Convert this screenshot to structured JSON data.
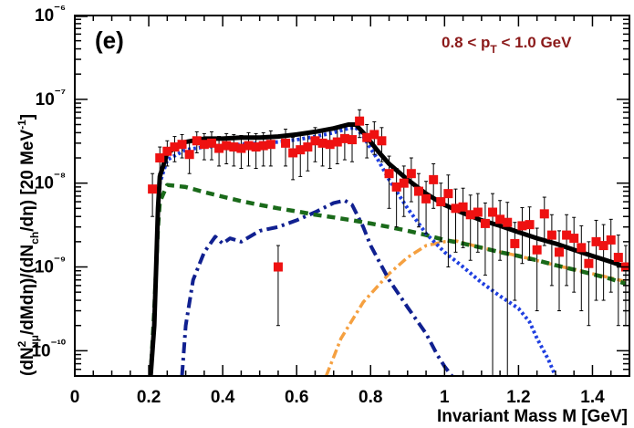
{
  "chart_data": {
    "type": "line",
    "panel_label": "(e)",
    "cut_label": "0.8 <  p_T < 1.0 GeV",
    "xlabel": "Invariant Mass M [GeV]",
    "ylabel": "(dN²_μμ/dMdη)/(dN_ch/dη) [20 MeV⁻¹]",
    "xlim": [
      0,
      1.5
    ],
    "ylim": [
      5e-11,
      1e-06
    ],
    "ylog": true,
    "grid": false,
    "x_ticks": [
      "0",
      "0.2",
      "0.4",
      "0.6",
      "0.8",
      "1",
      "1.2",
      "1.4"
    ],
    "y_ticks": [
      "10⁻¹⁰",
      "10⁻⁹",
      "10⁻⁸",
      "10⁻⁷",
      "10⁻⁶"
    ],
    "colors": {
      "total": "#000000",
      "blue_dotted": "#1f3fe0",
      "green_dashed": "#1a6a1a",
      "navy_dashdot": "#102090",
      "orange_dashdot": "#f5a040",
      "data_points": "#ee1111",
      "cut_label": "#8b1a1a"
    },
    "series": [
      {
        "style": "total",
        "x": [
          0.205,
          0.215,
          0.22,
          0.225,
          0.23,
          0.25,
          0.3,
          0.35,
          0.4,
          0.45,
          0.5,
          0.55,
          0.6,
          0.65,
          0.7,
          0.74,
          0.76,
          0.78,
          0.8,
          0.82,
          0.85,
          0.9,
          0.95,
          1.0,
          1.05,
          1.1,
          1.15,
          1.2,
          1.25,
          1.3,
          1.35,
          1.4,
          1.45,
          1.49
        ],
        "y": [
          5e-11,
          2e-10,
          1e-09,
          5e-09,
          1.2e-08,
          2.3e-08,
          3.1e-08,
          3.4e-08,
          3.4e-08,
          3.5e-08,
          3.5e-08,
          3.6e-08,
          3.8e-08,
          4.1e-08,
          4.5e-08,
          5e-08,
          5e-08,
          4e-08,
          3.1e-08,
          2.4e-08,
          1.7e-08,
          1.1e-08,
          7.5e-09,
          5.5e-09,
          4.4e-09,
          3.6e-09,
          3.1e-09,
          2.6e-09,
          2.2e-09,
          1.9e-09,
          1.6e-09,
          1.35e-09,
          1.15e-09,
          1e-09
        ]
      },
      {
        "style": "blue_dotted",
        "x": [
          0.205,
          0.215,
          0.22,
          0.225,
          0.23,
          0.25,
          0.3,
          0.35,
          0.4,
          0.45,
          0.5,
          0.55,
          0.6,
          0.65,
          0.7,
          0.74,
          0.76,
          0.78,
          0.8,
          0.82,
          0.85,
          0.9,
          0.95,
          1.0,
          1.05,
          1.1,
          1.15,
          1.2,
          1.23,
          1.25,
          1.28,
          1.3
        ],
        "y": [
          5e-11,
          2e-10,
          1e-09,
          5e-09,
          1e-08,
          1.9e-08,
          2.5e-08,
          2.7e-08,
          2.8e-08,
          2.9e-08,
          3e-08,
          3.1e-08,
          3.3e-08,
          3.6e-08,
          4e-08,
          4.5e-08,
          4.6e-08,
          3.6e-08,
          2.6e-08,
          1.9e-08,
          1.1e-08,
          5e-09,
          2.5e-09,
          1.5e-09,
          1e-09,
          6.5e-10,
          4.5e-10,
          3.2e-10,
          2.2e-10,
          1.4e-10,
          8e-11,
          5e-11
        ]
      },
      {
        "style": "green_dashed",
        "x": [
          0.205,
          0.215,
          0.22,
          0.225,
          0.23,
          0.25,
          0.3,
          0.35,
          0.4,
          0.45,
          0.5,
          0.55,
          0.6,
          0.65,
          0.7,
          0.75,
          0.8,
          0.85,
          0.9,
          0.95,
          1.0,
          1.05,
          1.1,
          1.15,
          1.2,
          1.25,
          1.3,
          1.35,
          1.4,
          1.45,
          1.49
        ],
        "y": [
          5e-11,
          3e-10,
          1e-09,
          3e-09,
          6e-09,
          9.5e-09,
          9e-09,
          7.8e-09,
          6.9e-09,
          6.1e-09,
          5.5e-09,
          5e-09,
          4.6e-09,
          4.2e-09,
          3.9e-09,
          3.6e-09,
          3.3e-09,
          3e-09,
          2.7e-09,
          2.4e-09,
          2.1e-09,
          1.9e-09,
          1.7e-09,
          1.5e-09,
          1.35e-09,
          1.2e-09,
          1.05e-09,
          9.3e-10,
          8.2e-10,
          7.2e-10,
          6.3e-10
        ]
      },
      {
        "style": "navy_dashdot",
        "x": [
          0.29,
          0.3,
          0.32,
          0.35,
          0.38,
          0.4,
          0.42,
          0.45,
          0.5,
          0.55,
          0.6,
          0.65,
          0.7,
          0.73,
          0.75,
          0.78,
          0.8,
          0.85,
          0.9,
          0.95,
          0.98,
          1.0,
          1.02
        ],
        "y": [
          5e-11,
          2e-10,
          7e-10,
          1.5e-09,
          2.3e-09,
          1.9e-09,
          2.2e-09,
          2e-09,
          2.7e-09,
          3e-09,
          3.6e-09,
          4.5e-09,
          5.8e-09,
          6.2e-09,
          5.5e-09,
          3e-09,
          1.8e-09,
          7e-10,
          3.3e-10,
          1.6e-10,
          9e-11,
          6.5e-11,
          5e-11
        ]
      },
      {
        "style": "orange_dashdot",
        "x": [
          0.68,
          0.72,
          0.78,
          0.85,
          0.9,
          0.95,
          1.0,
          1.03,
          1.05,
          1.1,
          1.2,
          1.3,
          1.4,
          1.49
        ],
        "y": [
          5e-11,
          1.4e-10,
          3.8e-10,
          8.3e-10,
          1.3e-09,
          1.8e-09,
          2e-09,
          2.05e-09,
          1.95e-09,
          1.7e-09,
          1.35e-09,
          1.05e-09,
          8.3e-10,
          6.7e-10
        ]
      }
    ],
    "data_points": {
      "x": [
        0.21,
        0.23,
        0.25,
        0.27,
        0.29,
        0.31,
        0.33,
        0.35,
        0.37,
        0.39,
        0.41,
        0.43,
        0.45,
        0.47,
        0.49,
        0.51,
        0.53,
        0.55,
        0.57,
        0.59,
        0.61,
        0.63,
        0.65,
        0.67,
        0.69,
        0.71,
        0.73,
        0.75,
        0.77,
        0.79,
        0.81,
        0.83,
        0.85,
        0.87,
        0.89,
        0.91,
        0.93,
        0.95,
        0.97,
        0.99,
        1.01,
        1.03,
        1.05,
        1.07,
        1.09,
        1.11,
        1.13,
        1.15,
        1.17,
        1.19,
        1.21,
        1.23,
        1.25,
        1.27,
        1.29,
        1.31,
        1.33,
        1.35,
        1.37,
        1.39,
        1.41,
        1.43,
        1.45,
        1.47,
        1.49
      ],
      "y": [
        8.5e-09,
        2e-08,
        2.4e-08,
        2.7e-08,
        2.9e-08,
        2.2e-08,
        3.2e-08,
        2.9e-08,
        3e-08,
        2.6e-08,
        2.8e-08,
        2.7e-08,
        2.6e-08,
        2.8e-08,
        2.7e-08,
        2.8e-08,
        2.9e-08,
        1e-09,
        3e-08,
        2.3e-08,
        2.5e-08,
        2.7e-08,
        3.2e-08,
        3e-08,
        2.9e-08,
        3.1e-08,
        3.4e-08,
        3.3e-08,
        5.5e-08,
        3.5e-08,
        3.8e-08,
        3.2e-08,
        1.3e-08,
        9e-09,
        1e-08,
        1.3e-08,
        8e-09,
        6.5e-09,
        1.1e-08,
        6e-09,
        7.5e-09,
        5e-09,
        5.2e-09,
        4.2e-09,
        4.5e-09,
        3.3e-09,
        4.5e-09,
        3.7e-09,
        3.4e-09,
        1.9e-09,
        3.1e-09,
        3.2e-09,
        1.6e-09,
        4.3e-09,
        2.4e-09,
        1.5e-09,
        2.4e-09,
        2.2e-09,
        1.7e-09,
        1.1e-09,
        2e-09,
        1.8e-09,
        2.1e-09,
        1.3e-09,
        1e-09
      ],
      "err_low": [
        4.5e-09,
        7e-09,
        8e-09,
        9e-09,
        9e-09,
        9e-09,
        9e-09,
        1e-08,
        1.1e-08,
        1e-08,
        1.1e-08,
        1.1e-08,
        1.1e-08,
        1.2e-08,
        1.2e-08,
        1.2e-08,
        1.3e-08,
        8e-10,
        1.4e-08,
        1.2e-08,
        1.3e-08,
        1.3e-08,
        1.4e-08,
        1.4e-08,
        1.4e-08,
        1.4e-08,
        1.5e-08,
        1.5e-08,
        2e-08,
        1.5e-08,
        1.6e-08,
        1.4e-08,
        8e-09,
        6e-09,
        6e-09,
        7e-09,
        5e-09,
        4e-09,
        6e-09,
        4e-09,
        6.5e-09,
        3.5e-09,
        3.5e-09,
        3e-09,
        3e-09,
        2.5e-09,
        4.45e-09,
        2.5e-09,
        3.35e-09,
        1.5e-09,
        2e-09,
        2e-09,
        1.3e-09,
        2.5e-09,
        1.8e-09,
        1.2e-09,
        1.8e-09,
        1.7e-09,
        1.4e-09,
        9e-10,
        1.6e-09,
        1.4e-09,
        1.6e-09,
        1.1e-09,
        8e-10
      ],
      "err_high": [
        4.5e-09,
        7e-09,
        8e-09,
        9e-09,
        9e-09,
        9e-09,
        9e-09,
        1e-08,
        1.1e-08,
        1e-08,
        1.1e-08,
        1.1e-08,
        1.1e-08,
        1.2e-08,
        1.2e-08,
        1.2e-08,
        1.3e-08,
        8e-10,
        1.4e-08,
        1.2e-08,
        1.3e-08,
        1.3e-08,
        1.4e-08,
        1.4e-08,
        1.4e-08,
        1.4e-08,
        1.5e-08,
        1.5e-08,
        2e-08,
        1.5e-08,
        1.6e-08,
        1.4e-08,
        8e-09,
        6e-09,
        6e-09,
        7e-09,
        5e-09,
        4e-09,
        6e-09,
        4e-09,
        5e-09,
        3.5e-09,
        3.5e-09,
        3e-09,
        3e-09,
        2.5e-09,
        3e-09,
        2.5e-09,
        2.5e-09,
        1.5e-09,
        2e-09,
        2e-09,
        1.3e-09,
        2.5e-09,
        1.8e-09,
        1.2e-09,
        1.8e-09,
        1.7e-09,
        1.4e-09,
        9e-10,
        1.6e-09,
        1.4e-09,
        1.6e-09,
        1.1e-09,
        8e-10
      ]
    }
  }
}
